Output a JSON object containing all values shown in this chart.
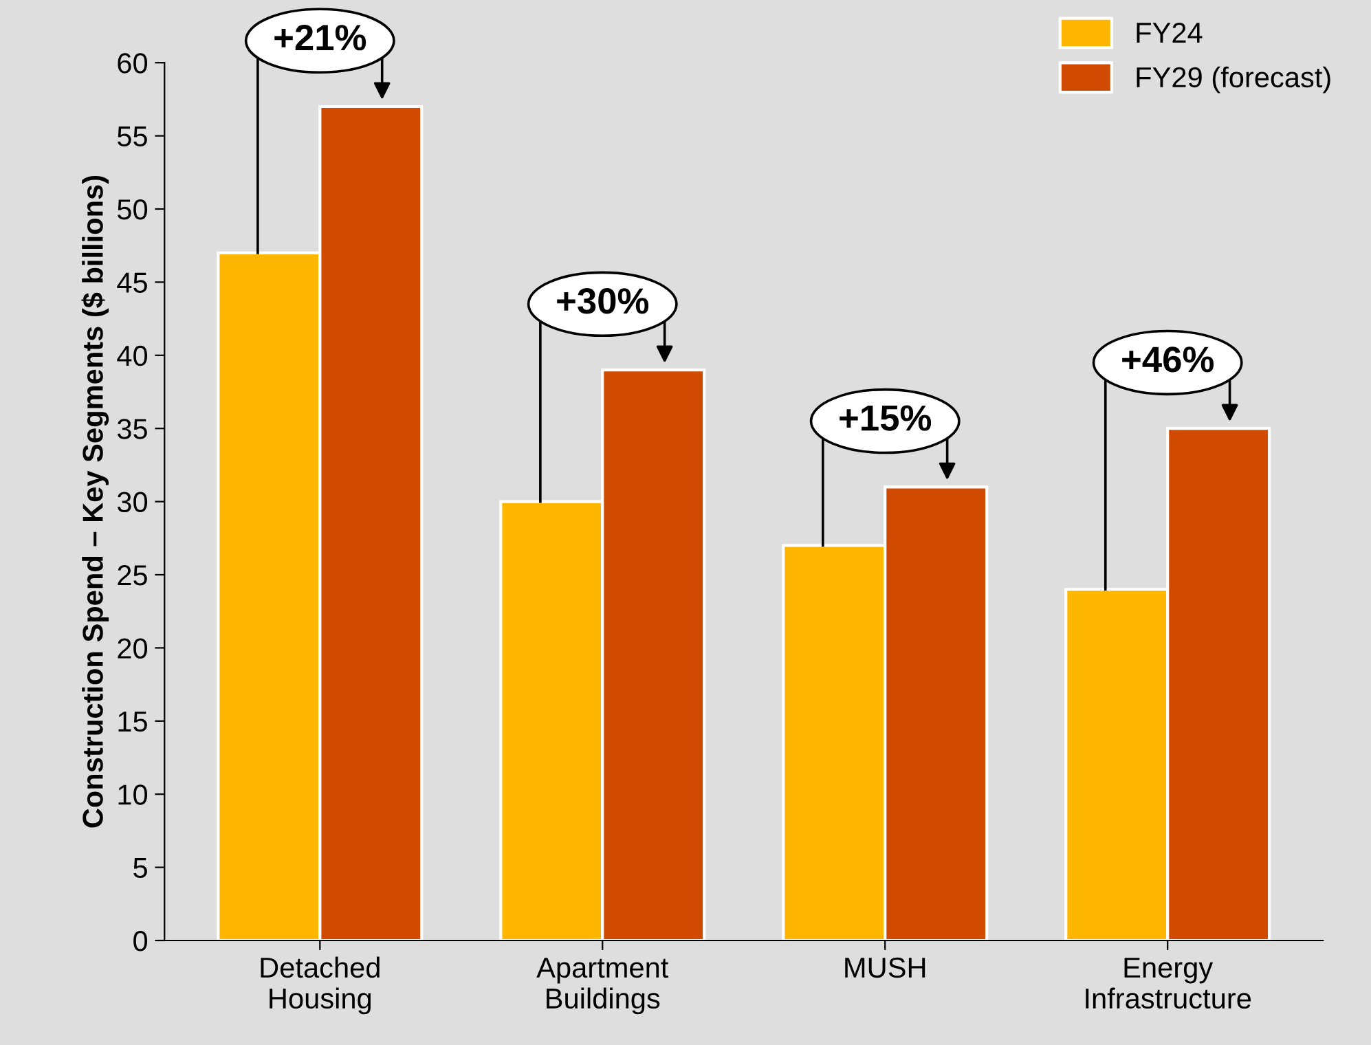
{
  "chart_data": {
    "type": "bar",
    "ylabel": "Construction Spend – Key Segments ($ billions)",
    "categories": [
      "Detached\nHousing",
      "Apartment\nBuildings",
      "MUSH",
      "Energy\nInfrastructure"
    ],
    "series": [
      {
        "name": "FY24",
        "color": "#ffb600",
        "values": [
          47,
          30,
          27,
          24
        ]
      },
      {
        "name": "FY29 (forecast)",
        "color": "#d04a02",
        "values": [
          57,
          39,
          31,
          35
        ]
      }
    ],
    "ylim": [
      0,
      60
    ],
    "yticks": [
      0,
      5,
      10,
      15,
      20,
      25,
      30,
      35,
      40,
      45,
      50,
      55,
      60
    ],
    "annotations": [
      {
        "text": "+21%",
        "x": "Detached\nHousing",
        "y": 57
      },
      {
        "text": "+30%",
        "x": "Apartment\nBuildings",
        "y": 39
      },
      {
        "text": "+15%",
        "x": "MUSH",
        "y": 31
      },
      {
        "text": "+46%",
        "x": "Energy\nInfrastructure",
        "y": 35
      }
    ],
    "grid": false,
    "legend": "top right"
  }
}
